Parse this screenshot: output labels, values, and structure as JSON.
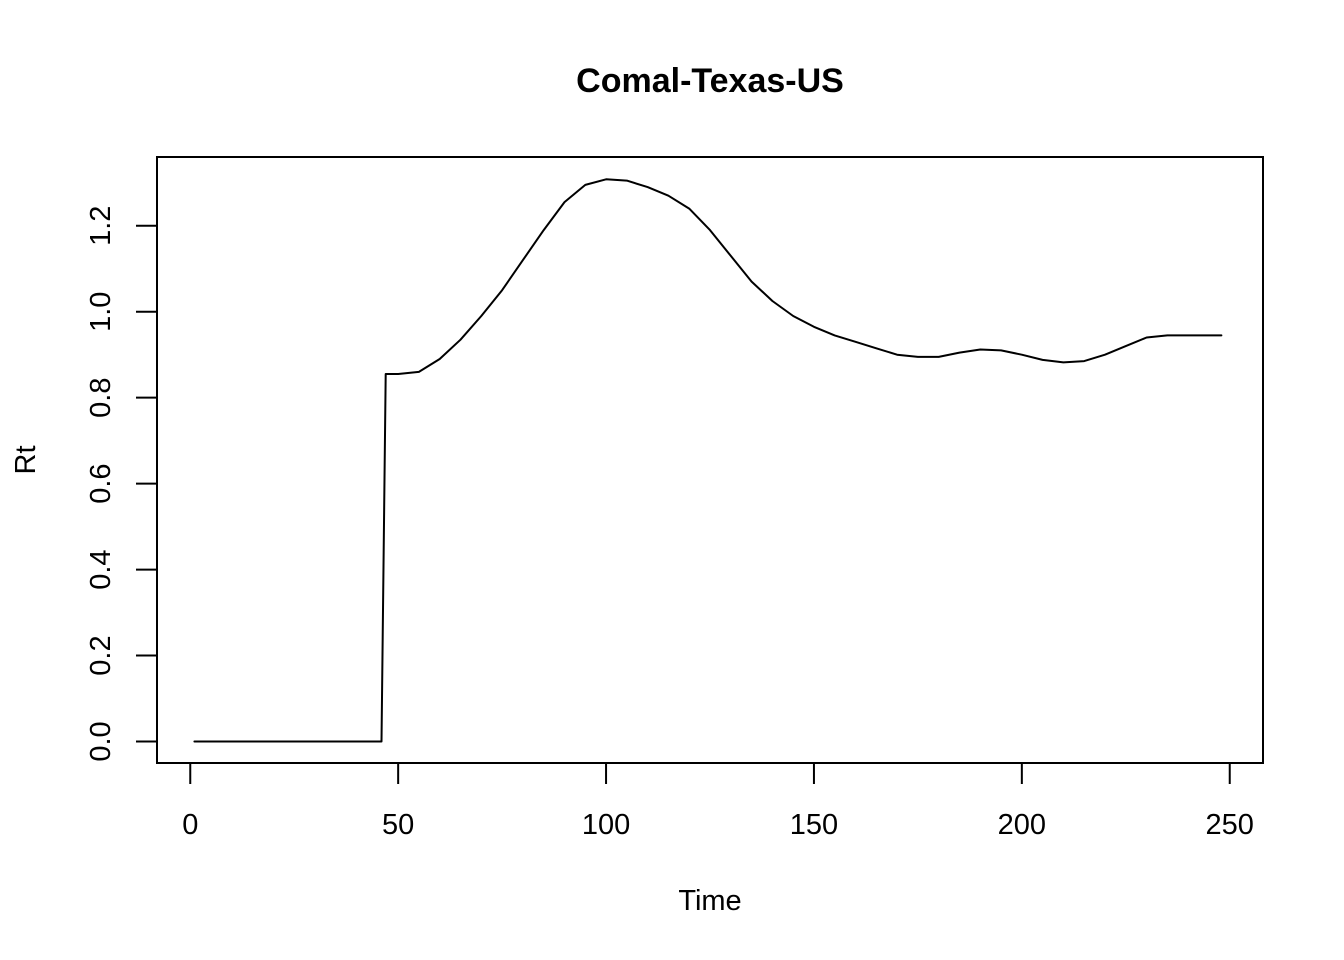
{
  "chart_data": {
    "type": "line",
    "title": "Comal-Texas-US",
    "xlabel": "Time",
    "ylabel": "Rt",
    "xlim": [
      -8,
      258
    ],
    "ylim": [
      -0.05,
      1.36
    ],
    "x_ticks": [
      0,
      50,
      100,
      150,
      200,
      250
    ],
    "x_tick_labels": [
      "0",
      "50",
      "100",
      "150",
      "200",
      "250"
    ],
    "y_ticks": [
      0.0,
      0.2,
      0.4,
      0.6,
      0.8,
      1.0,
      1.2
    ],
    "y_tick_labels": [
      "0.0",
      "0.2",
      "0.4",
      "0.6",
      "0.8",
      "1.0",
      "1.2"
    ],
    "grid": false,
    "series": [
      {
        "color": "#000000",
        "x": [
          1,
          46,
          47,
          50,
          55,
          60,
          65,
          70,
          75,
          80,
          85,
          90,
          95,
          100,
          105,
          110,
          115,
          120,
          125,
          130,
          135,
          140,
          145,
          150,
          155,
          160,
          165,
          170,
          175,
          180,
          185,
          190,
          195,
          200,
          205,
          210,
          215,
          220,
          225,
          230,
          235,
          240,
          245,
          248
        ],
        "y": [
          0.0,
          0.0,
          0.855,
          0.855,
          0.86,
          0.89,
          0.935,
          0.99,
          1.05,
          1.12,
          1.19,
          1.255,
          1.295,
          1.308,
          1.305,
          1.29,
          1.27,
          1.24,
          1.19,
          1.13,
          1.07,
          1.025,
          0.99,
          0.965,
          0.945,
          0.93,
          0.915,
          0.9,
          0.895,
          0.895,
          0.905,
          0.912,
          0.91,
          0.9,
          0.888,
          0.882,
          0.885,
          0.9,
          0.92,
          0.94,
          0.945,
          0.945,
          0.945,
          0.945
        ]
      }
    ]
  }
}
